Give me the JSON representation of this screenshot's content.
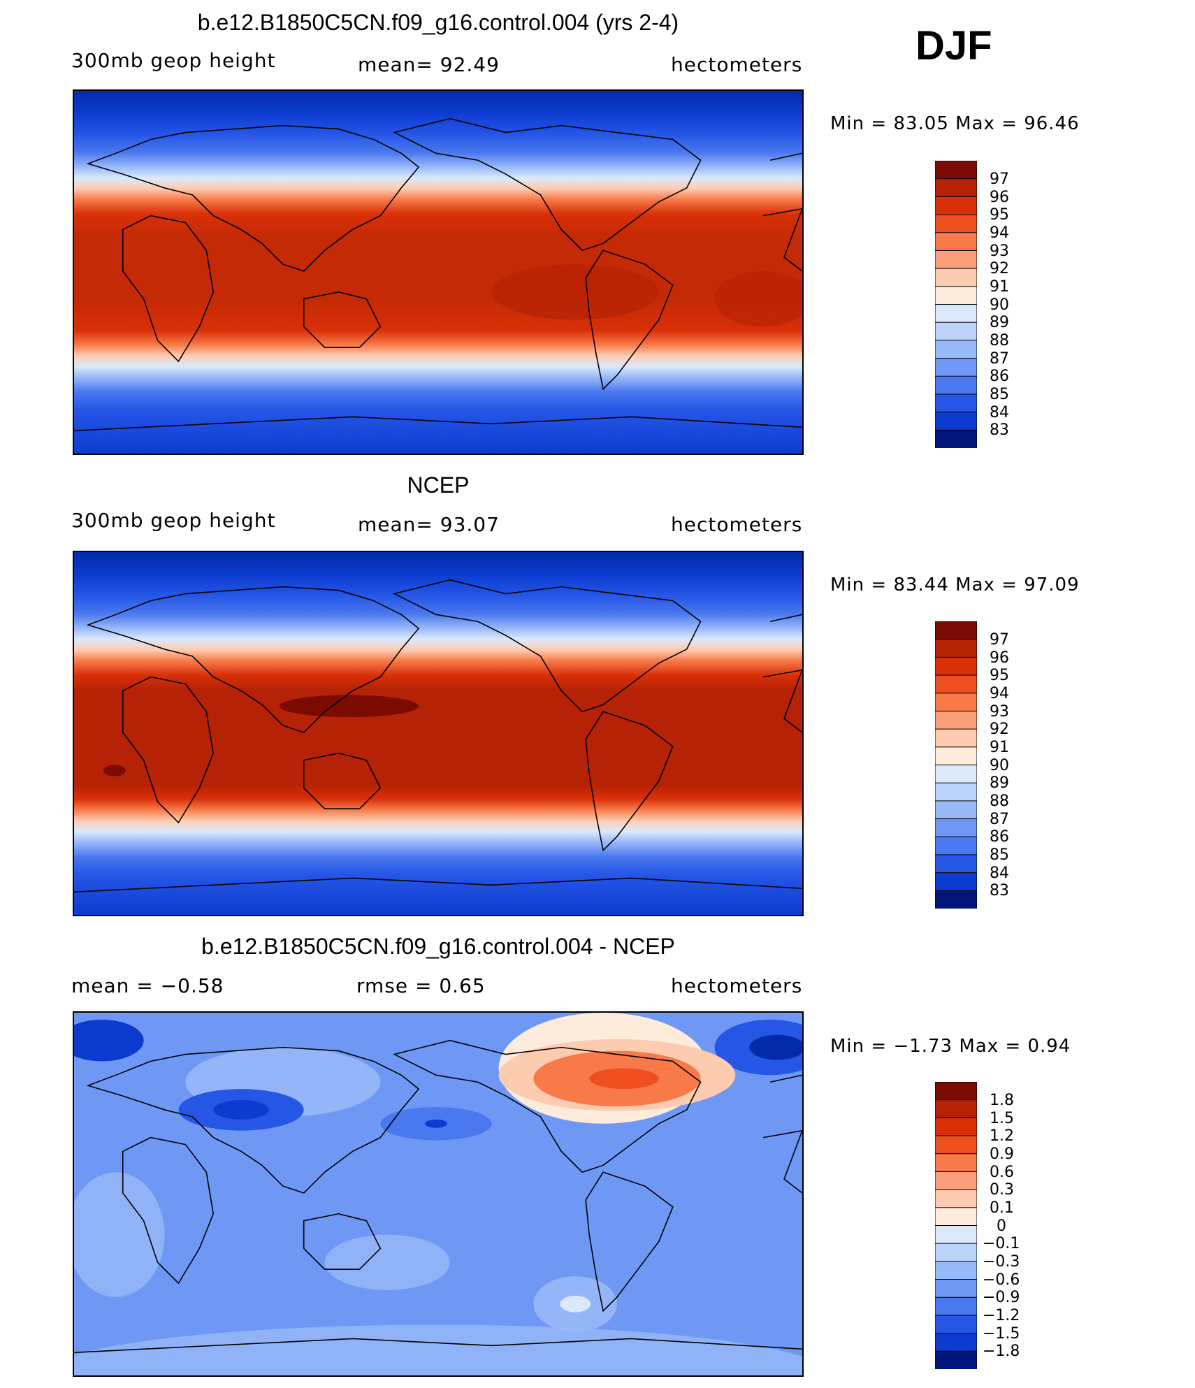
{
  "season": "DJF",
  "panels": [
    {
      "id": "model",
      "title": "b.e12.B1850C5CN.f09_g16.control.004 (yrs 2-4)",
      "left_label": "300mb  geop  height",
      "center_label": "mean=   92.49",
      "right_label": "hectometers",
      "min_max": "Min  =    83.05  Max  =    96.46",
      "legend_levels": [
        "97",
        "96",
        "95",
        "94",
        "93",
        "92",
        "91",
        "90",
        "89",
        "88",
        "87",
        "86",
        "85",
        "84",
        "83"
      ]
    },
    {
      "id": "ncep",
      "title": "NCEP",
      "left_label": "300mb  geop  height",
      "center_label": "mean=   93.07",
      "right_label": "hectometers",
      "min_max": "Min  =    83.44  Max  =    97.09",
      "legend_levels": [
        "97",
        "96",
        "95",
        "94",
        "93",
        "92",
        "91",
        "90",
        "89",
        "88",
        "87",
        "86",
        "85",
        "84",
        "83"
      ]
    },
    {
      "id": "diff",
      "title": "b.e12.B1850C5CN.f09_g16.control.004 - NCEP",
      "left_label": "mean  =    −0.58",
      "center_label": "rmse  =     0.65",
      "right_label": "hectometers",
      "min_max": "Min  =   −1.73  Max  =     0.94",
      "legend_levels": [
        "1.8",
        "1.5",
        "1.2",
        "0.9",
        "0.6",
        "0.3",
        "0.1",
        "0",
        "−0.1",
        "−0.3",
        "−0.6",
        "−0.9",
        "−1.2",
        "−1.5",
        "−1.8"
      ]
    }
  ],
  "colors": {
    "palette": [
      "#7a0a02",
      "#b52205",
      "#d93008",
      "#ee5020",
      "#f77a48",
      "#fba07a",
      "#fdcbb0",
      "#fdebdc",
      "#dbe9fb",
      "#bcd3fa",
      "#98b9f8",
      "#6e98f4",
      "#4a78ee",
      "#2556e6",
      "#0d3bd0",
      "#032aa8",
      "#00147a"
    ]
  }
}
